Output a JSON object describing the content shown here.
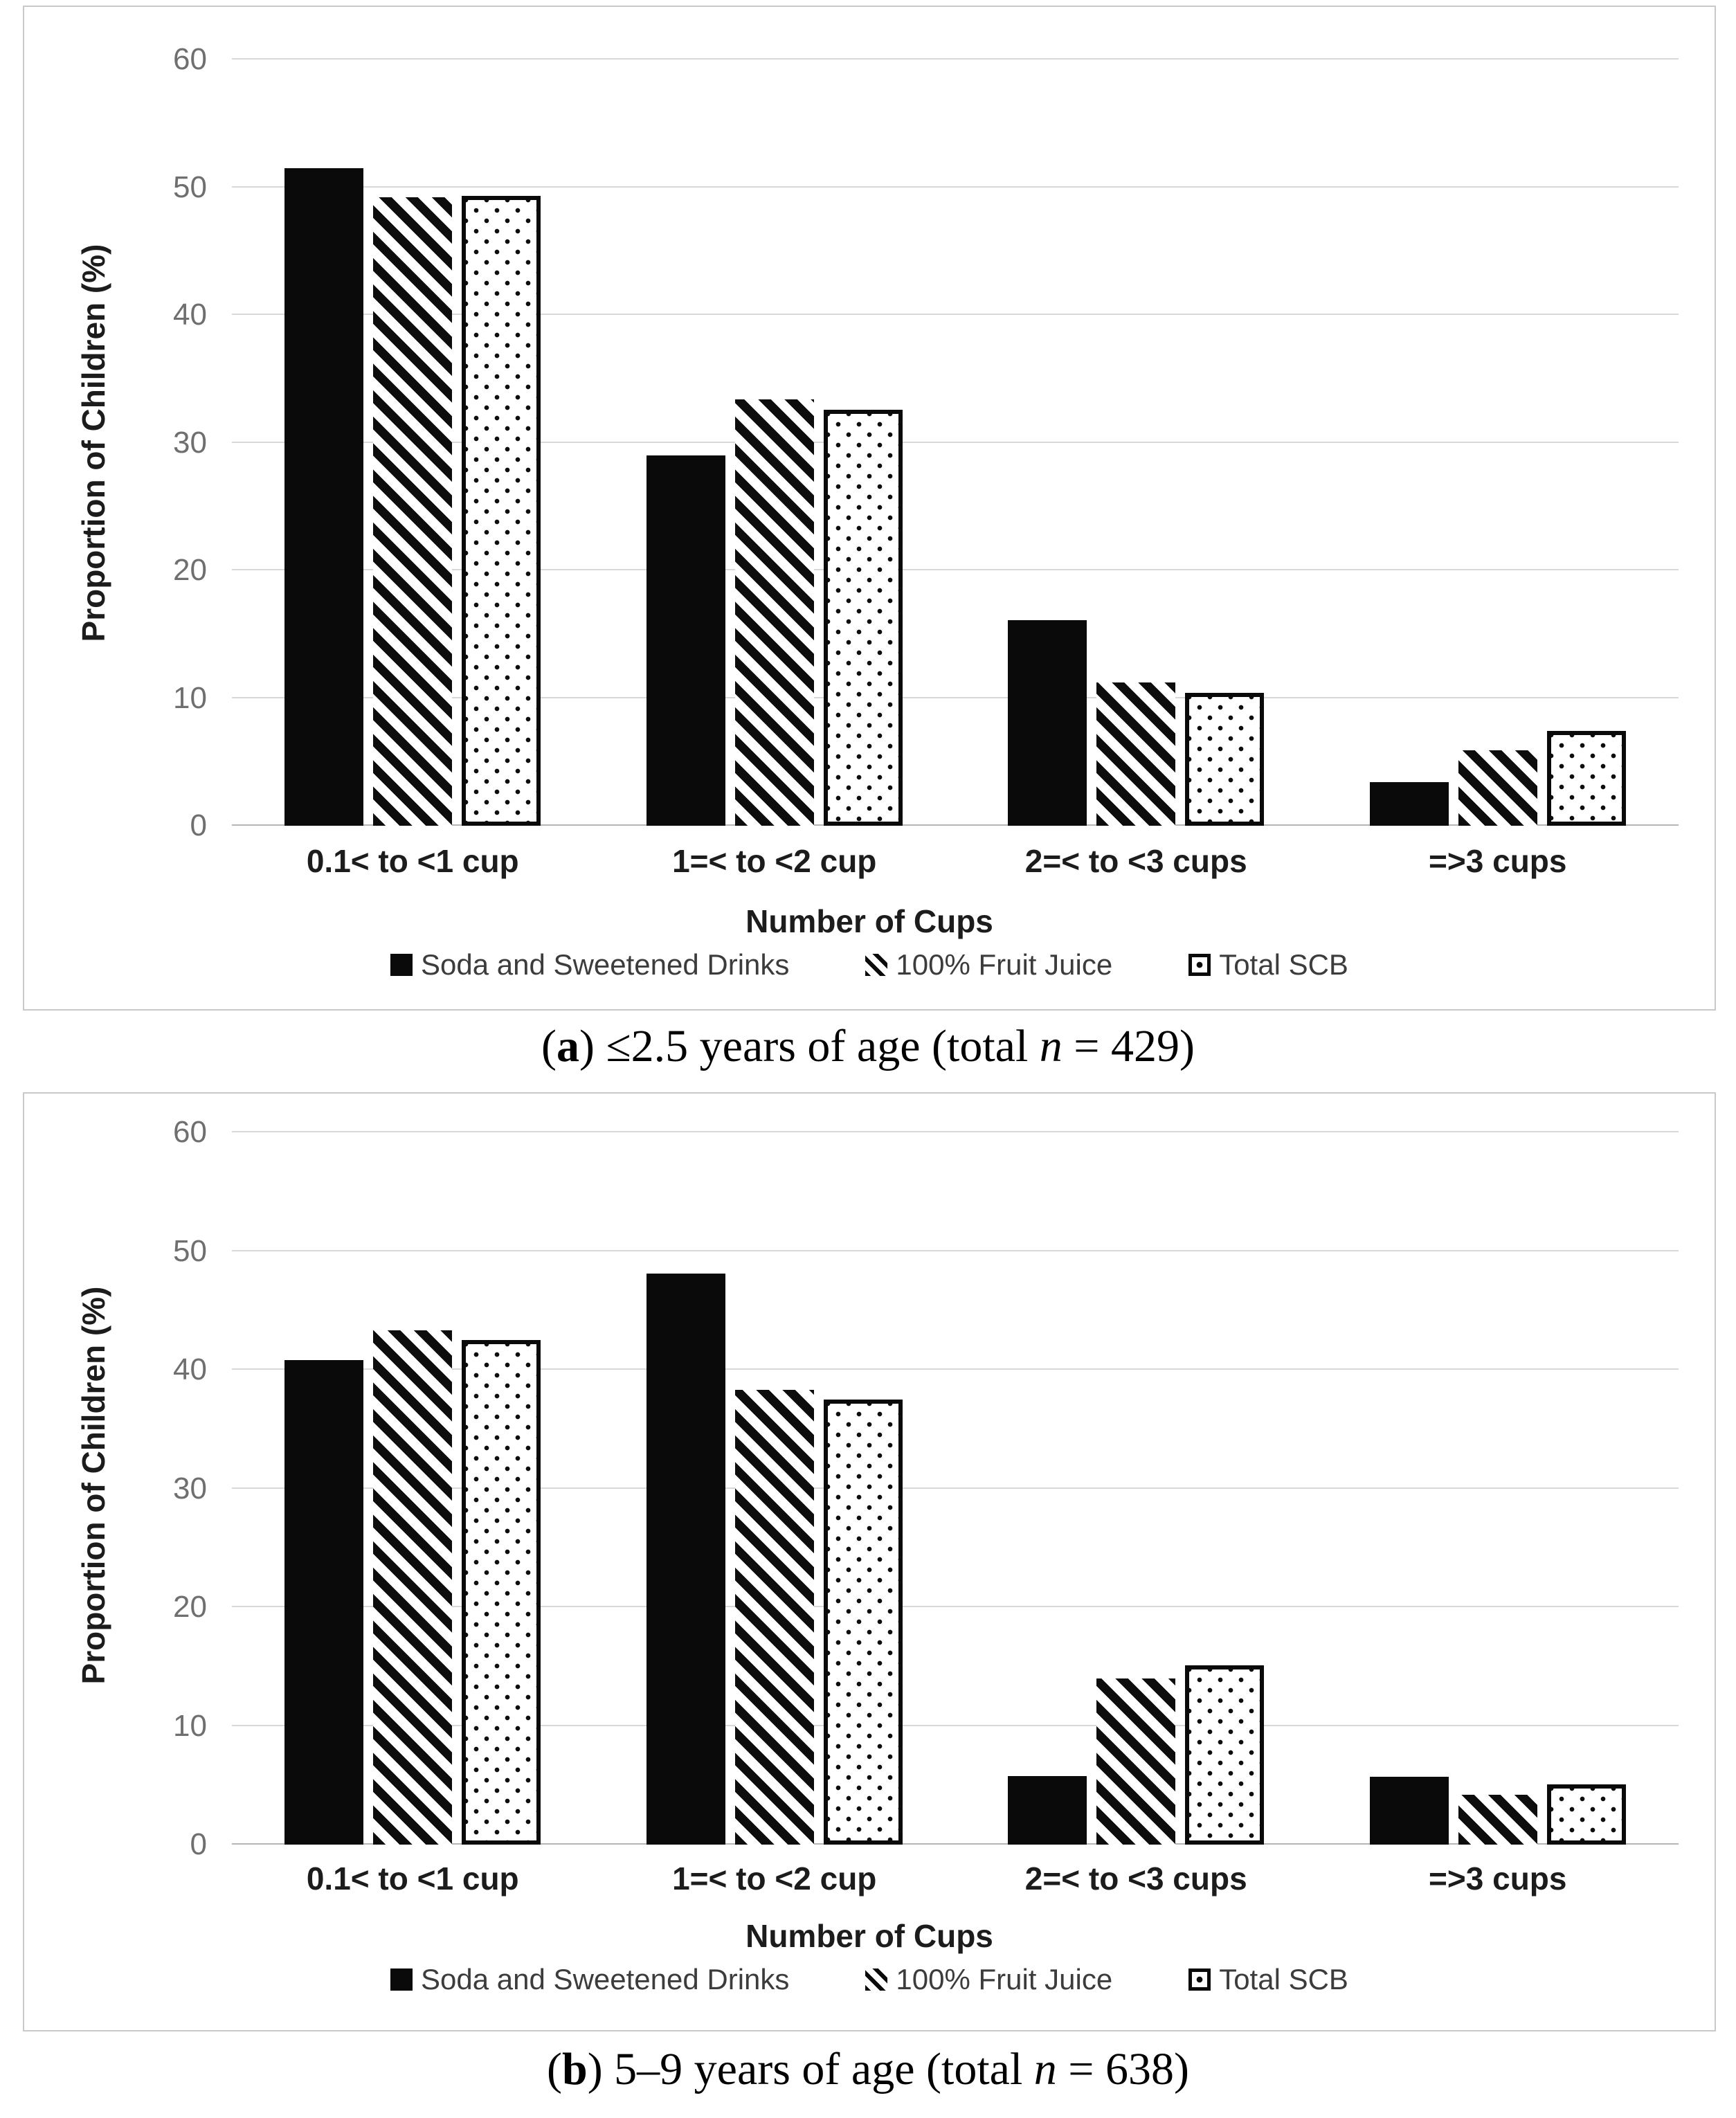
{
  "accent_colors": {
    "bar_fill": "#0a0a0a",
    "gridline": "#d8d8d8",
    "axis_line": "#b5b5b5",
    "tick_text": "#6f6f6f",
    "panel_border": "#c9c9c9"
  },
  "captions": {
    "a": {
      "open": "(",
      "letter": "a",
      "mid": ") ≤2.5 years of age (total ",
      "n": "n",
      "end": " = 429)"
    },
    "b": {
      "open": "(",
      "letter": "b",
      "mid": ") 5–9 years of age (total ",
      "n": "n",
      "end": " = 638)"
    }
  },
  "chart_data": [
    {
      "type": "bar",
      "panel": "a",
      "title": "",
      "categories": [
        "0.1< to <1 cup",
        "1=< to <2 cup",
        "2=< to <3 cups",
        "=>3 cups"
      ],
      "series": [
        {
          "name": "Soda and Sweetened Drinks",
          "pattern": "solid",
          "values": [
            51.5,
            29.0,
            16.1,
            3.4
          ]
        },
        {
          "name": "100% Fruit Juice",
          "pattern": "diagonal-hatch",
          "values": [
            49.2,
            33.4,
            11.2,
            5.9
          ]
        },
        {
          "name": "Total SCB",
          "pattern": "dotted",
          "values": [
            49.3,
            32.6,
            10.4,
            7.4
          ]
        }
      ],
      "xlabel": "Number of Cups",
      "ylabel": "Proportion of Children (%)",
      "ylim": [
        0,
        60
      ],
      "yticks": [
        0,
        10,
        20,
        30,
        40,
        50,
        60
      ],
      "grid": true,
      "legend_position": "bottom",
      "caption_text": "(a) ≤2.5 years of age (total n = 429)"
    },
    {
      "type": "bar",
      "panel": "b",
      "title": "",
      "categories": [
        "0.1< to <1 cup",
        "1=< to <2 cup",
        "2=< to <3 cups",
        "=>3 cups"
      ],
      "series": [
        {
          "name": "Soda and Sweetened Drinks",
          "pattern": "solid",
          "values": [
            40.8,
            48.1,
            5.8,
            5.7
          ]
        },
        {
          "name": "100% Fruit Juice",
          "pattern": "diagonal-hatch",
          "values": [
            43.3,
            38.3,
            14.0,
            4.2
          ]
        },
        {
          "name": "Total SCB",
          "pattern": "dotted",
          "values": [
            42.5,
            37.5,
            15.1,
            5.1
          ]
        }
      ],
      "xlabel": "Number of Cups",
      "ylabel": "Proportion of Children (%)",
      "ylim": [
        0,
        60
      ],
      "yticks": [
        0,
        10,
        20,
        30,
        40,
        50,
        60
      ],
      "grid": true,
      "legend_position": "bottom",
      "caption_text": "(b) 5–9 years of age (total n = 638)"
    }
  ]
}
